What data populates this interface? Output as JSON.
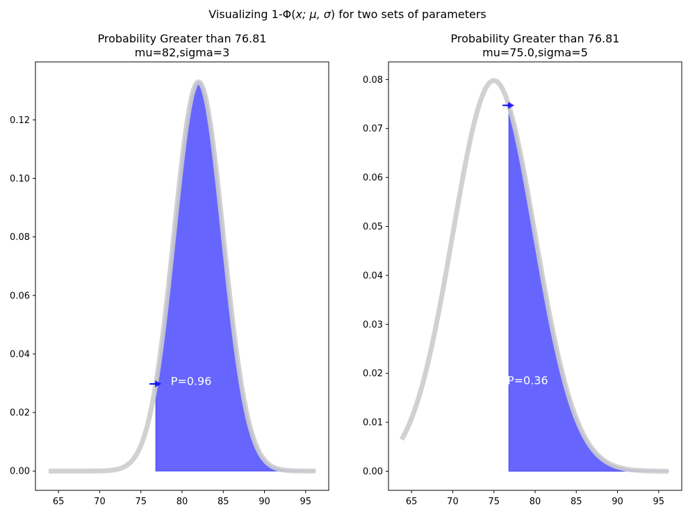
{
  "figure": {
    "suptitle_prefix": "Visualizing 1-Φ(",
    "suptitle_math": "x; μ, σ",
    "suptitle_suffix": ") for two sets of parameters"
  },
  "chart_data": [
    {
      "type": "area",
      "title_line1": "Probability Greater than 76.81",
      "title_line2": "mu=82,sigma=3",
      "mu": 82,
      "sigma": 3,
      "threshold": 76.81,
      "curve_x_range": [
        63.8,
        96.2
      ],
      "xlim": [
        62.2,
        97.8
      ],
      "ylim": [
        -0.0066,
        0.1398
      ],
      "xticks": [
        65,
        70,
        75,
        80,
        85,
        90,
        95
      ],
      "yticks": [
        0.0,
        0.02,
        0.04,
        0.06,
        0.08,
        0.1,
        0.12
      ],
      "ytick_labels": [
        "0.00",
        "0.02",
        "0.04",
        "0.06",
        "0.08",
        "0.10",
        "0.12"
      ],
      "p_label": "P=0.96",
      "p_label_pos": [
        81.1,
        0.0305
      ],
      "curve_color": "#cccccc",
      "fill_color": "#0000ff",
      "fill_alpha": 0.6,
      "arrow_color": "#0000ff"
    },
    {
      "type": "area",
      "title_line1": "Probability Greater than 76.81",
      "title_line2": "mu=75.0,sigma=5",
      "mu": 75.0,
      "sigma": 5,
      "threshold": 76.81,
      "curve_x_range": [
        63.8,
        96.2
      ],
      "xlim": [
        62.2,
        97.8
      ],
      "ylim": [
        -0.0039,
        0.0836
      ],
      "xticks": [
        65,
        70,
        75,
        80,
        85,
        90,
        95
      ],
      "yticks": [
        0.0,
        0.01,
        0.02,
        0.03,
        0.04,
        0.05,
        0.06,
        0.07,
        0.08
      ],
      "ytick_labels": [
        "0.00",
        "0.01",
        "0.02",
        "0.03",
        "0.04",
        "0.05",
        "0.06",
        "0.07",
        "0.08"
      ],
      "p_label": "P=0.36",
      "p_label_pos": [
        79.1,
        0.0184
      ],
      "curve_color": "#cccccc",
      "fill_color": "#0000ff",
      "fill_alpha": 0.6,
      "arrow_color": "#0000ff"
    }
  ]
}
